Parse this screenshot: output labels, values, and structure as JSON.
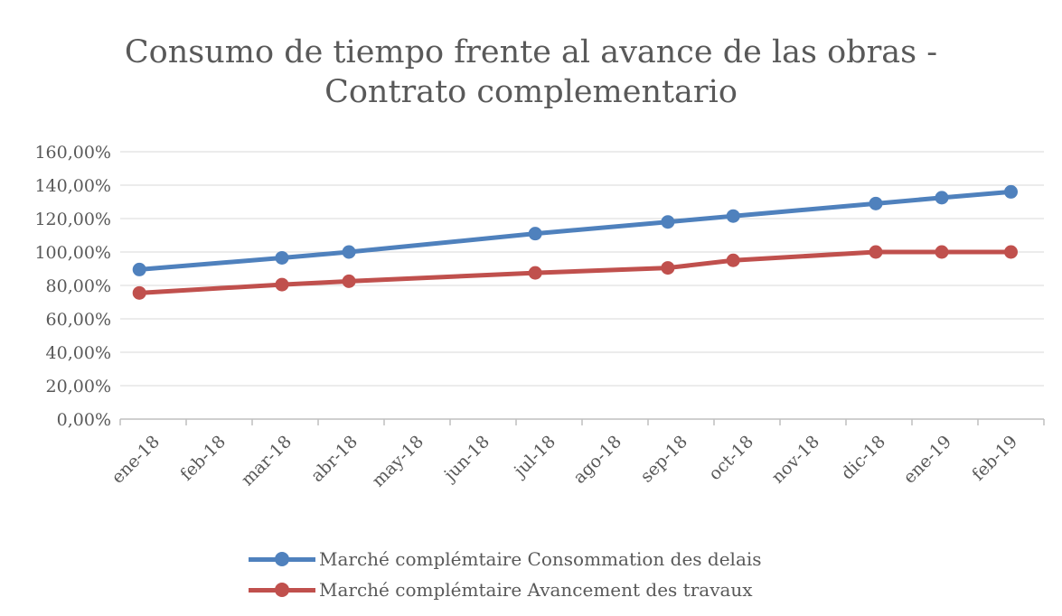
{
  "chart_data": {
    "type": "line",
    "title": "Consumo de tiempo frente al avance de las obras -\nContrato complementario",
    "categories": [
      "ene-18",
      "feb-18",
      "mar-18",
      "abr-18",
      "may-18",
      "jun-18",
      "jul-18",
      "ago-18",
      "sep-18",
      "oct-18",
      "nov-18",
      "dic-18",
      "ene-19",
      "feb-19"
    ],
    "y_ticks": [
      "0,00%",
      "20,00%",
      "40,00%",
      "60,00%",
      "80,00%",
      "100,00%",
      "120,00%",
      "140,00%",
      "160,00%"
    ],
    "ylim": [
      0,
      160
    ],
    "grid": "horizontal",
    "legend_position": "bottom",
    "series": [
      {
        "name": "Marché complémtaire Consommation des delais",
        "color": "#4f81bd",
        "points": [
          {
            "x": "2018-01-10",
            "y": 89.5
          },
          {
            "x": "2018-03-15",
            "y": 96.5
          },
          {
            "x": "2018-04-15",
            "y": 100.0
          },
          {
            "x": "2018-07-10",
            "y": 111.0
          },
          {
            "x": "2018-09-10",
            "y": 118.0
          },
          {
            "x": "2018-10-10",
            "y": 121.5
          },
          {
            "x": "2018-12-15",
            "y": 129.0
          },
          {
            "x": "2019-01-15",
            "y": 132.5
          },
          {
            "x": "2019-02-15",
            "y": 136.0
          }
        ]
      },
      {
        "name": "Marché complémtaire Avancement des travaux",
        "color": "#c0504d",
        "points": [
          {
            "x": "2018-01-10",
            "y": 75.5
          },
          {
            "x": "2018-03-15",
            "y": 80.5
          },
          {
            "x": "2018-04-15",
            "y": 82.5
          },
          {
            "x": "2018-07-10",
            "y": 87.5
          },
          {
            "x": "2018-09-10",
            "y": 90.5
          },
          {
            "x": "2018-10-10",
            "y": 95.0
          },
          {
            "x": "2018-12-15",
            "y": 100.0
          },
          {
            "x": "2019-01-15",
            "y": 100.0
          },
          {
            "x": "2019-02-15",
            "y": 100.0
          }
        ]
      }
    ]
  }
}
